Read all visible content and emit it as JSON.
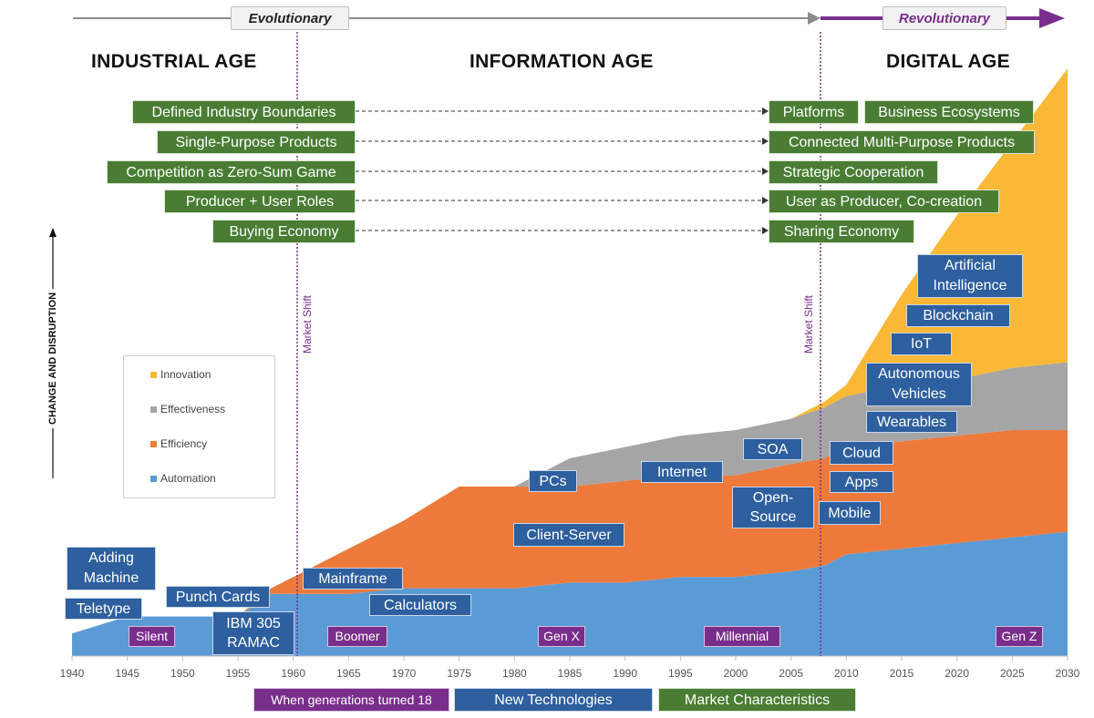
{
  "header": {
    "evolutionary": "Evolutionary",
    "revolutionary": "Revolutionary"
  },
  "ages": [
    "INDUSTRIAL AGE",
    "INFORMATION AGE",
    "DIGITAL AGE"
  ],
  "y_axis_label": "CHANGE AND DISRUPTION",
  "market_shift": [
    "Market Shift",
    "Market Shift"
  ],
  "legend": [
    {
      "name": "Innovation",
      "color": "#f9b835"
    },
    {
      "name": "Effectiveness",
      "color": "#a5a5a5"
    },
    {
      "name": "Efficiency",
      "color": "#ed7a3b"
    },
    {
      "name": "Automation",
      "color": "#5b9bd5"
    }
  ],
  "characteristics_left": [
    "Defined Industry Boundaries",
    "Single-Purpose Products",
    "Competition as Zero-Sum Game",
    "Producer + User Roles",
    "Buying Economy"
  ],
  "characteristics_right": [
    "Platforms",
    "Business Ecosystems",
    "Connected Multi-Purpose Products",
    "Strategic Cooperation",
    "User as Producer, Co-creation",
    "Sharing Economy"
  ],
  "technologies": [
    "Adding Machine",
    "Teletype",
    "Punch Cards",
    "IBM 305 RAMAC",
    "Mainframe",
    "Calculators",
    "Client-Server",
    "PCs",
    "Internet",
    "SOA",
    "Open-Source",
    "Cloud",
    "Apps",
    "Mobile",
    "Wearables",
    "Autonomous Vehicles",
    "IoT",
    "Blockchain",
    "Artificial Intelligence"
  ],
  "generations": [
    "Silent",
    "Boomer",
    "Gen X",
    "Millennial",
    "Gen Z"
  ],
  "bottom_legend": [
    "When generations turned 18",
    "New Technologies",
    "Market Characteristics"
  ],
  "chart_data": {
    "type": "area",
    "stacked": true,
    "xlim": [
      1940,
      2030
    ],
    "ylim": [
      0,
      100
    ],
    "x_ticks": [
      1940,
      1945,
      1950,
      1955,
      1960,
      1965,
      1970,
      1975,
      1980,
      1985,
      1990,
      1995,
      2000,
      2005,
      2010,
      2015,
      2020,
      2025,
      2030
    ],
    "x": [
      1940,
      1945,
      1950,
      1955,
      1958,
      1960,
      1965,
      1970,
      1975,
      1980,
      1985,
      1990,
      1995,
      2000,
      2005,
      2008,
      2010,
      2015,
      2020,
      2025,
      2030
    ],
    "series": [
      {
        "name": "Automation",
        "values": [
          4,
          7,
          7,
          7,
          11,
          11,
          11,
          12,
          12,
          12,
          13,
          13,
          14,
          14,
          15,
          16,
          18,
          19,
          20,
          21,
          22
        ]
      },
      {
        "name": "Efficiency",
        "values": [
          0,
          0,
          0,
          0,
          1,
          3,
          8,
          12,
          18,
          18,
          17,
          18,
          18,
          18,
          19,
          19,
          19,
          19,
          19,
          19,
          18
        ]
      },
      {
        "name": "Effectiveness",
        "values": [
          0,
          0,
          0,
          0,
          0,
          0,
          0,
          0,
          0,
          0,
          5,
          6,
          7,
          8,
          8,
          9,
          9,
          10,
          10,
          11,
          12
        ]
      },
      {
        "name": "Innovation",
        "values": [
          0,
          0,
          0,
          0,
          0,
          0,
          0,
          0,
          0,
          0,
          0,
          0,
          0,
          0,
          0,
          1,
          2,
          16,
          29,
          40,
          52
        ]
      }
    ]
  }
}
